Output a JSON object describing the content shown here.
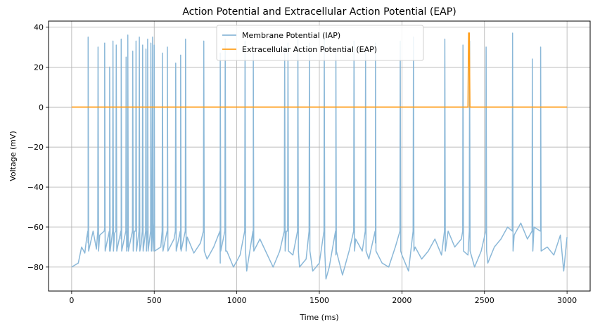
{
  "chart_data": {
    "type": "line",
    "title": "Action Potential and Extracellular Action Potential (EAP)",
    "xlabel": "Time (ms)",
    "ylabel": "Voltage (mV)",
    "xlim": [
      -140,
      3140
    ],
    "ylim": [
      -92,
      43
    ],
    "x_ticks": [
      0,
      500,
      1000,
      1500,
      2000,
      2500,
      3000
    ],
    "y_ticks": [
      -80,
      -60,
      -40,
      -20,
      0,
      20,
      40
    ],
    "grid": true,
    "legend_position": "top-center",
    "series": [
      {
        "name": "Membrane Potential (IAP)",
        "color": "#8bb8d8",
        "baseline": [
          [
            0,
            -80
          ],
          [
            20,
            -79
          ],
          [
            40,
            -78
          ],
          [
            60,
            -70
          ],
          [
            80,
            -73
          ],
          [
            90,
            -66
          ],
          [
            100,
            -68
          ],
          [
            130,
            -62
          ],
          [
            150,
            -71
          ],
          [
            170,
            -64
          ],
          [
            200,
            -60
          ],
          [
            230,
            -72
          ],
          [
            260,
            -63
          ],
          [
            300,
            -66
          ],
          [
            340,
            -70
          ],
          [
            380,
            -62
          ],
          [
            420,
            -69
          ],
          [
            460,
            -64
          ],
          [
            500,
            -58
          ],
          [
            540,
            -70
          ],
          [
            580,
            -63
          ],
          [
            620,
            -66
          ],
          [
            660,
            -71
          ],
          [
            700,
            -65
          ],
          [
            740,
            -73
          ],
          [
            780,
            -68
          ],
          [
            820,
            -76
          ],
          [
            860,
            -70
          ],
          [
            900,
            -78
          ],
          [
            940,
            -72
          ],
          [
            980,
            -80
          ],
          [
            1020,
            -74
          ],
          [
            1060,
            -82
          ],
          [
            1100,
            -70
          ],
          [
            1140,
            -66
          ],
          [
            1180,
            -73
          ],
          [
            1220,
            -80
          ],
          [
            1260,
            -72
          ],
          [
            1300,
            -62
          ],
          [
            1340,
            -74
          ],
          [
            1380,
            -80
          ],
          [
            1420,
            -76
          ],
          [
            1460,
            -82
          ],
          [
            1500,
            -78
          ],
          [
            1540,
            -86
          ],
          [
            1560,
            -80
          ],
          [
            1600,
            -74
          ],
          [
            1640,
            -84
          ],
          [
            1680,
            -72
          ],
          [
            1720,
            -66
          ],
          [
            1760,
            -72
          ],
          [
            1800,
            -76
          ],
          [
            1840,
            -68
          ],
          [
            1880,
            -78
          ],
          [
            1920,
            -80
          ],
          [
            1960,
            -70
          ],
          [
            2000,
            -74
          ],
          [
            2040,
            -82
          ],
          [
            2080,
            -70
          ],
          [
            2120,
            -76
          ],
          [
            2160,
            -72
          ],
          [
            2200,
            -66
          ],
          [
            2240,
            -74
          ],
          [
            2280,
            -62
          ],
          [
            2320,
            -70
          ],
          [
            2360,
            -66
          ],
          [
            2400,
            -74
          ],
          [
            2440,
            -80
          ],
          [
            2480,
            -72
          ],
          [
            2520,
            -78
          ],
          [
            2560,
            -70
          ],
          [
            2600,
            -66
          ],
          [
            2640,
            -60
          ],
          [
            2680,
            -64
          ],
          [
            2720,
            -58
          ],
          [
            2760,
            -66
          ],
          [
            2800,
            -60
          ],
          [
            2840,
            -62
          ],
          [
            2880,
            -70
          ],
          [
            2920,
            -74
          ],
          [
            2960,
            -64
          ],
          [
            2980,
            -82
          ],
          [
            3000,
            -65
          ]
        ],
        "spikes": [
          [
            100,
            35
          ],
          [
            160,
            30
          ],
          [
            200,
            32
          ],
          [
            230,
            20
          ],
          [
            250,
            33
          ],
          [
            270,
            31
          ],
          [
            300,
            34
          ],
          [
            330,
            25
          ],
          [
            340,
            36
          ],
          [
            370,
            28
          ],
          [
            390,
            33
          ],
          [
            410,
            35
          ],
          [
            430,
            31
          ],
          [
            450,
            29
          ],
          [
            460,
            34
          ],
          [
            480,
            32
          ],
          [
            490,
            35
          ],
          [
            500,
            31
          ],
          [
            550,
            27
          ],
          [
            580,
            30
          ],
          [
            630,
            22
          ],
          [
            660,
            26
          ],
          [
            690,
            34
          ],
          [
            800,
            33
          ],
          [
            900,
            27
          ],
          [
            930,
            34
          ],
          [
            1050,
            33
          ],
          [
            1100,
            28
          ],
          [
            1290,
            30
          ],
          [
            1310,
            32
          ],
          [
            1370,
            34
          ],
          [
            1440,
            32
          ],
          [
            1530,
            34
          ],
          [
            1600,
            29
          ],
          [
            1710,
            33
          ],
          [
            1780,
            28
          ],
          [
            1840,
            32
          ],
          [
            1990,
            33
          ],
          [
            2070,
            35
          ],
          [
            2260,
            34
          ],
          [
            2370,
            31
          ],
          [
            2410,
            33
          ],
          [
            2510,
            30
          ],
          [
            2670,
            37
          ],
          [
            2790,
            24
          ],
          [
            2840,
            30
          ]
        ]
      },
      {
        "name": "Extracellular Action Potential (EAP)",
        "color": "#ff9f1c",
        "points": [
          [
            0,
            0
          ],
          [
            2400,
            0
          ],
          [
            2404,
            37
          ],
          [
            2408,
            37
          ],
          [
            2412,
            0
          ],
          [
            3000,
            0
          ]
        ]
      }
    ]
  }
}
